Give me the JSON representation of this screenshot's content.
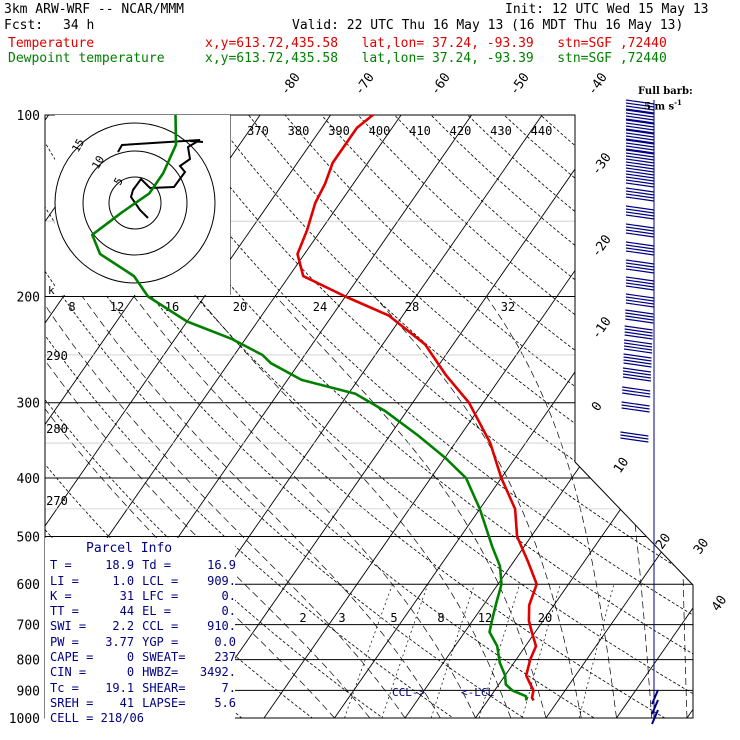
{
  "header": {
    "model": "3km ARW-WRF -- NCAR/MMM",
    "init": "Init: 12 UTC Wed 15 May 13",
    "fcst_label": "Fcst:",
    "fcst_value": "34 h",
    "valid": "Valid: 22 UTC Thu 16 May 13 (16 MDT Thu 16 May 13)",
    "temp_label": "Temperature",
    "dew_label": "Dewpoint temperature",
    "temp_loc": "x,y=613.72,435.58   lat,lon= 37.24, -93.39   stn=SGF ,72440",
    "dew_loc": "x,y=613.72,435.58   lat,lon= 37.24, -93.39   stn=SGF ,72440"
  },
  "colors": {
    "temperature": "#e00000",
    "dewpoint": "#008000",
    "wind": "#000080"
  },
  "barb_legend": {
    "title": "Full barb:",
    "value": "5 m s",
    "sup": "-1"
  },
  "hodograph": {
    "units": "kts",
    "ring_labels": [
      "5",
      "10",
      "15"
    ]
  },
  "parcel": {
    "title": "Parcel Info",
    "rows": [
      [
        "T   =",
        "18.9",
        "Td  =",
        "16.9"
      ],
      [
        "LI  =",
        "1.0",
        "LCL =",
        "909."
      ],
      [
        "K   =",
        "31",
        "LFC =",
        "0."
      ],
      [
        "TT  =",
        "44",
        "EL  =",
        "0."
      ],
      [
        "SWI =",
        "2.2",
        "CCL =",
        "910."
      ],
      [
        "PW  =",
        "3.77",
        "YGP =",
        "0.0"
      ],
      [
        "CAPE =",
        "0",
        "SWEAT=",
        "237"
      ],
      [
        "CIN  =",
        "0",
        "HWBZ=",
        "3492."
      ],
      [
        "Tc  =",
        "19.1",
        "SHEAR=",
        "7."
      ],
      [
        "SREH =",
        "41",
        "LAPSE=",
        "5.6"
      ]
    ],
    "cell": "CELL = 218/06"
  },
  "labels": {
    "ccl": "CCL->",
    "lcl": "<-LCL"
  },
  "chart_data": {
    "type": "line",
    "ylabel_ticks": [
      100,
      200,
      300,
      400,
      500,
      600,
      700,
      800,
      900,
      1000
    ],
    "yscale": "log-pressure",
    "isotherm_labels": [
      "-80",
      "-70",
      "-60",
      "-50",
      "-40",
      "-30",
      "-20",
      "-10",
      "0",
      "10",
      "20",
      "30",
      "40"
    ],
    "theta_labels": [
      "370",
      "380",
      "390",
      "400",
      "410",
      "420",
      "430",
      "440"
    ],
    "theta_low_labels": [
      "290",
      "280",
      "270"
    ],
    "mixratio_labels": [
      "2",
      "3",
      "5",
      "8",
      "12",
      "20"
    ],
    "hodo_ticks": [
      "8",
      "12",
      "16",
      "20",
      "24",
      "28",
      "32"
    ],
    "series": [
      {
        "name": "Temperature",
        "points": [
          [
            935,
            16.5
          ],
          [
            925,
            16.0
          ],
          [
            900,
            15.5
          ],
          [
            870,
            14.0
          ],
          [
            850,
            13.0
          ],
          [
            800,
            12.0
          ],
          [
            760,
            11.5
          ],
          [
            720,
            9.5
          ],
          [
            690,
            8.0
          ],
          [
            650,
            6.5
          ],
          [
            600,
            5.5
          ],
          [
            550,
            2.0
          ],
          [
            500,
            -2.0
          ],
          [
            450,
            -5.0
          ],
          [
            400,
            -10.0
          ],
          [
            350,
            -15.0
          ],
          [
            300,
            -22.0
          ],
          [
            270,
            -28.0
          ],
          [
            240,
            -34.0
          ],
          [
            215,
            -42.0
          ],
          [
            200,
            -50.0
          ],
          [
            185,
            -58.0
          ],
          [
            170,
            -61.0
          ],
          [
            155,
            -62.0
          ],
          [
            140,
            -63.5
          ],
          [
            130,
            -64.0
          ],
          [
            120,
            -65.0
          ],
          [
            110,
            -65.0
          ],
          [
            105,
            -65.0
          ],
          [
            100,
            -64.0
          ]
        ]
      },
      {
        "name": "Dewpoint temperature",
        "points": [
          [
            935,
            15.5
          ],
          [
            920,
            15.0
          ],
          [
            900,
            12.5
          ],
          [
            880,
            11.0
          ],
          [
            850,
            10.0
          ],
          [
            810,
            8.0
          ],
          [
            760,
            6.0
          ],
          [
            720,
            3.5
          ],
          [
            680,
            2.5
          ],
          [
            640,
            1.5
          ],
          [
            600,
            0.5
          ],
          [
            560,
            -1.5
          ],
          [
            520,
            -4.5
          ],
          [
            500,
            -6.0
          ],
          [
            450,
            -10.0
          ],
          [
            400,
            -15.0
          ],
          [
            370,
            -20.0
          ],
          [
            340,
            -26.0
          ],
          [
            310,
            -33.0
          ],
          [
            290,
            -39.0
          ],
          [
            275,
            -48.0
          ],
          [
            258,
            -54.0
          ],
          [
            250,
            -56.0
          ],
          [
            235,
            -62.0
          ],
          [
            220,
            -70.0
          ],
          [
            200,
            -78.0
          ],
          [
            185,
            -82.0
          ],
          [
            170,
            -89.0
          ],
          [
            158,
            -92.0
          ],
          [
            145,
            -90.0
          ],
          [
            135,
            -88.0
          ],
          [
            125,
            -88.0
          ],
          [
            112,
            -89.0
          ],
          [
            100,
            -92.0
          ]
        ]
      }
    ]
  }
}
